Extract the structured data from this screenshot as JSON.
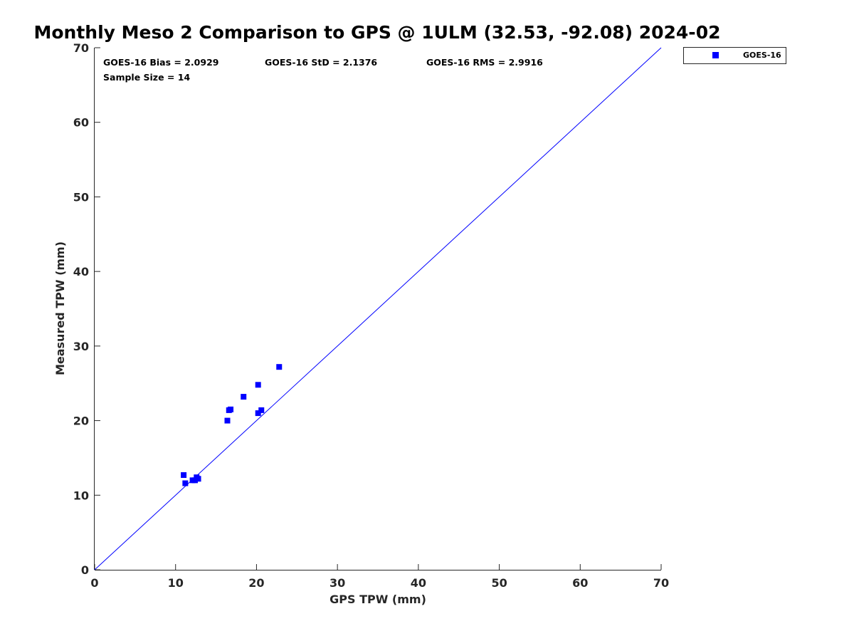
{
  "colors": {
    "series": "#0000ff",
    "axis": "#262626",
    "background": "#ffffff"
  },
  "stats": {
    "bias": "GOES-16 Bias = 2.0929",
    "std": "GOES-16 StD = 2.1376",
    "rms": "GOES-16 RMS = 2.9916",
    "sample": "Sample Size = 14"
  },
  "chart_data": {
    "type": "scatter",
    "title": "Monthly Meso 2 Comparison to GPS @ 1ULM (32.53, -92.08) 2024-02",
    "xlabel": "GPS TPW (mm)",
    "ylabel": "Measured TPW (mm)",
    "xlim": [
      0,
      70
    ],
    "ylim": [
      0,
      70
    ],
    "xticks": [
      0,
      10,
      20,
      30,
      40,
      50,
      60,
      70
    ],
    "yticks": [
      0,
      10,
      20,
      30,
      40,
      50,
      60,
      70
    ],
    "grid": false,
    "legend_position": "top-right-outside",
    "reference_line": {
      "name": "1:1",
      "x": [
        0,
        70
      ],
      "y": [
        0,
        70
      ]
    },
    "series": [
      {
        "name": "GOES-16",
        "marker": "square",
        "points": [
          {
            "x": 11.0,
            "y": 12.7
          },
          {
            "x": 11.2,
            "y": 11.6
          },
          {
            "x": 12.1,
            "y": 12.0
          },
          {
            "x": 12.4,
            "y": 12.0
          },
          {
            "x": 12.6,
            "y": 12.4
          },
          {
            "x": 12.8,
            "y": 12.2
          },
          {
            "x": 16.4,
            "y": 20.0
          },
          {
            "x": 16.6,
            "y": 21.4
          },
          {
            "x": 16.8,
            "y": 21.5
          },
          {
            "x": 18.4,
            "y": 23.2
          },
          {
            "x": 20.2,
            "y": 24.8
          },
          {
            "x": 20.2,
            "y": 21.0
          },
          {
            "x": 20.6,
            "y": 21.4
          },
          {
            "x": 22.8,
            "y": 27.2
          }
        ]
      }
    ]
  }
}
